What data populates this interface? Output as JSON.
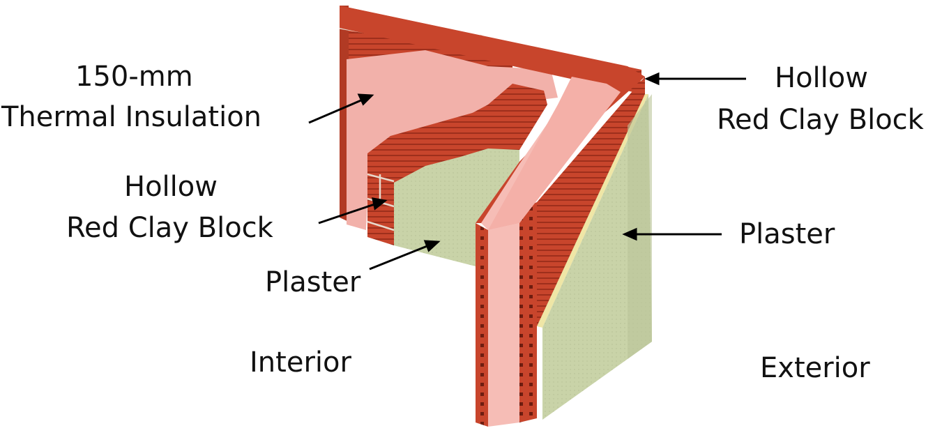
{
  "labels": {
    "insulation_line1": "150-mm",
    "insulation_line2": "Thermal Insulation",
    "left_block_line1": "Hollow",
    "left_block_line2": "Red Clay Block",
    "left_plaster": "Plaster",
    "right_block_line1": "Hollow",
    "right_block_line2": "Red Clay Block",
    "right_plaster": "Plaster",
    "interior": "Interior",
    "exterior": "Exterior"
  },
  "colors": {
    "brick": "#c8452c",
    "brick_dark": "#9e2f1c",
    "mortar": "#e8d9cc",
    "insulation": "#f6bdb6",
    "insulation_shade": "#e9a39c",
    "plaster": "#c9d3a8",
    "plaster_shade": "#b3be92",
    "plaster_edge": "#efe6a6"
  }
}
